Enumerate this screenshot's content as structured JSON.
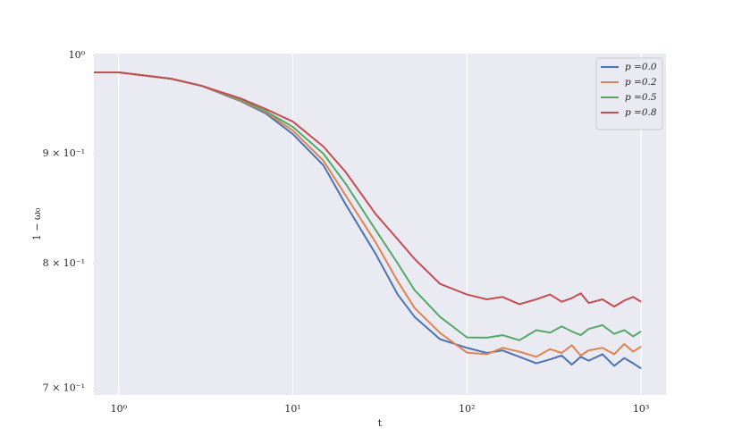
{
  "chart_data": {
    "type": "line",
    "x_label": "t",
    "y_label": "1 − ω₀",
    "log_x": true,
    "log_y": true,
    "x_grid": true,
    "y_grid": false,
    "legend": "upper right",
    "xlim": [
      0.72,
      1390
    ],
    "ylim": [
      0.695,
      1.002
    ],
    "xticks": [
      {
        "value": 1,
        "label": "10⁰"
      },
      {
        "value": 10,
        "label": "10¹"
      },
      {
        "value": 100,
        "label": "10²"
      },
      {
        "value": 1000,
        "label": "10³"
      }
    ],
    "yticks": [
      {
        "value": 1,
        "label": "10⁰"
      },
      {
        "value": 0.9,
        "label": "9 × 10⁻¹"
      },
      {
        "value": 0.8,
        "label": "8 × 10⁻¹"
      },
      {
        "value": 0.7,
        "label": "7 × 10⁻¹"
      }
    ],
    "x": [
      0.72,
      1,
      2,
      3,
      5,
      7,
      10,
      15,
      20,
      30,
      40,
      50,
      70,
      100,
      130,
      160,
      200,
      250,
      300,
      350,
      400,
      450,
      500,
      600,
      700,
      800,
      900,
      1000
    ],
    "series": [
      {
        "name": "p =0.0",
        "color": "#4c72b0",
        "values": [
          0.982,
          0.982,
          0.9754,
          0.9679,
          0.9523,
          0.9397,
          0.9192,
          0.8889,
          0.8531,
          0.808,
          0.774,
          0.7557,
          0.7378,
          0.731,
          0.727,
          0.729,
          0.724,
          0.719,
          0.722,
          0.725,
          0.718,
          0.724,
          0.721,
          0.726,
          0.717,
          0.723,
          0.719,
          0.715
        ]
      },
      {
        "name": "p =0.2",
        "color": "#dd8452",
        "values": [
          0.982,
          0.982,
          0.9754,
          0.968,
          0.953,
          0.941,
          0.9227,
          0.8932,
          0.8613,
          0.8181,
          0.7851,
          0.763,
          0.7428,
          0.7273,
          0.726,
          0.731,
          0.728,
          0.724,
          0.73,
          0.727,
          0.733,
          0.725,
          0.729,
          0.731,
          0.726,
          0.734,
          0.728,
          0.732
        ]
      },
      {
        "name": "p =0.5",
        "color": "#55a868",
        "values": [
          0.982,
          0.982,
          0.9754,
          0.968,
          0.954,
          0.942,
          0.9263,
          0.9,
          0.8721,
          0.8291,
          0.8003,
          0.7777,
          0.7557,
          0.7392,
          0.739,
          0.741,
          0.737,
          0.745,
          0.743,
          0.748,
          0.744,
          0.741,
          0.746,
          0.749,
          0.742,
          0.745,
          0.74,
          0.744
        ]
      },
      {
        "name": "p =0.8",
        "color": "#c44e52",
        "values": [
          0.982,
          0.982,
          0.9754,
          0.968,
          0.9551,
          0.9442,
          0.9316,
          0.9069,
          0.883,
          0.8434,
          0.8212,
          0.8041,
          0.7829,
          0.774,
          0.77,
          0.772,
          0.766,
          0.77,
          0.774,
          0.768,
          0.771,
          0.775,
          0.767,
          0.77,
          0.764,
          0.769,
          0.772,
          0.768
        ]
      }
    ]
  }
}
